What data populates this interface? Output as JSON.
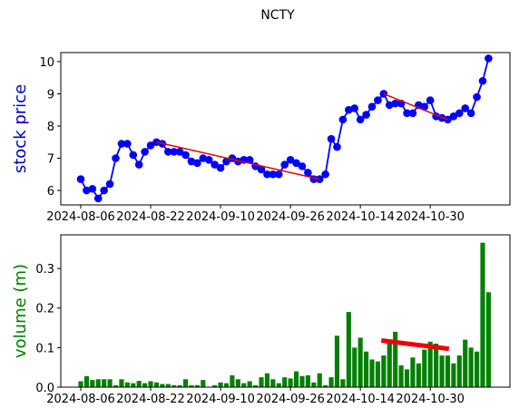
{
  "chart_data": [
    {
      "type": "line",
      "title": "NCTY",
      "ylabel": "stock price",
      "ylabel_color": "#0000cc",
      "color": "#0000ff",
      "categories": [
        "2024-08-06",
        null,
        null,
        null,
        null,
        null,
        null,
        null,
        null,
        null,
        null,
        null,
        "2024-08-22",
        null,
        null,
        null,
        null,
        null,
        null,
        null,
        null,
        null,
        null,
        null,
        "2024-09-10",
        null,
        null,
        null,
        null,
        null,
        null,
        null,
        null,
        null,
        null,
        null,
        "2024-09-26",
        null,
        null,
        null,
        null,
        null,
        null,
        null,
        null,
        null,
        null,
        null,
        "2024-10-14",
        null,
        null,
        null,
        null,
        null,
        null,
        null,
        null,
        null,
        null,
        null,
        "2024-10-30",
        null,
        null,
        null,
        null,
        null,
        null,
        null,
        null,
        null,
        null
      ],
      "values": [
        6.35,
        6.0,
        6.05,
        5.75,
        6.0,
        6.2,
        7.0,
        7.45,
        7.45,
        7.1,
        6.8,
        7.2,
        7.4,
        7.5,
        7.45,
        7.2,
        7.2,
        7.2,
        7.1,
        6.9,
        6.85,
        7.0,
        6.95,
        6.8,
        6.7,
        6.9,
        7.0,
        6.9,
        6.95,
        6.95,
        6.75,
        6.65,
        6.5,
        6.5,
        6.5,
        6.8,
        6.95,
        6.85,
        6.75,
        6.55,
        6.35,
        6.35,
        6.5,
        7.6,
        7.35,
        8.2,
        8.5,
        8.55,
        8.2,
        8.35,
        8.6,
        8.8,
        9.0,
        8.65,
        8.7,
        8.7,
        8.4,
        8.4,
        8.65,
        8.6,
        8.8,
        8.3,
        8.25,
        8.2,
        8.3,
        8.4,
        8.55,
        8.4,
        8.9,
        9.4,
        10.1
      ],
      "trend_lines": [
        {
          "x": [
            13,
            41
          ],
          "values": [
            7.5,
            6.35
          ]
        },
        {
          "x": [
            52,
            63
          ],
          "values": [
            9.0,
            8.2
          ]
        }
      ],
      "trend_color": "#ee0000",
      "ylim": [
        5.55,
        10.28
      ],
      "yticks": [
        6,
        7,
        8,
        9,
        10
      ]
    },
    {
      "type": "bar",
      "ylabel": "volume (m)",
      "ylabel_color": "#008000",
      "color": "#008000",
      "values": [
        0.015,
        0.028,
        0.018,
        0.02,
        0.02,
        0.02,
        0.005,
        0.02,
        0.012,
        0.01,
        0.016,
        0.01,
        0.015,
        0.012,
        0.008,
        0.008,
        0.005,
        0.005,
        0.02,
        0.005,
        0.005,
        0.018,
        0.0,
        0.005,
        0.012,
        0.01,
        0.03,
        0.02,
        0.01,
        0.015,
        0.005,
        0.025,
        0.035,
        0.02,
        0.01,
        0.025,
        0.022,
        0.04,
        0.028,
        0.03,
        0.012,
        0.035,
        0.005,
        0.025,
        0.13,
        0.02,
        0.19,
        0.1,
        0.125,
        0.09,
        0.07,
        0.065,
        0.08,
        0.12,
        0.14,
        0.055,
        0.045,
        0.075,
        0.06,
        0.095,
        0.115,
        0.11,
        0.08,
        0.08,
        0.06,
        0.08,
        0.12,
        0.1,
        0.09,
        0.365,
        0.24
      ],
      "trend_lines": [
        {
          "x": [
            51.6,
            63.2
          ],
          "values": [
            0.118,
            0.097
          ]
        }
      ],
      "trend_color": "#ee0000",
      "ylim": [
        0,
        0.385
      ],
      "yticks": [
        {
          "value": 0,
          "label": "0.0"
        },
        0.1,
        0.2,
        0.3
      ]
    }
  ]
}
